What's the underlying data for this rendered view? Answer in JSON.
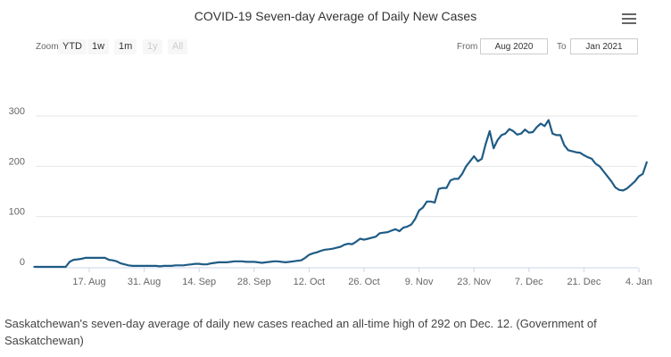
{
  "chart_data": {
    "type": "line",
    "title": "COVID-19 Seven-day Average of Daily New Cases",
    "xlabel": "",
    "ylabel": "",
    "ylim": [
      0,
      320
    ],
    "y_ticks": [
      0,
      100,
      200,
      300
    ],
    "x_ticks": [
      {
        "label": "17. Aug",
        "date": "2020-08-17"
      },
      {
        "label": "31. Aug",
        "date": "2020-08-31"
      },
      {
        "label": "14. Sep",
        "date": "2020-09-14"
      },
      {
        "label": "28. Sep",
        "date": "2020-09-28"
      },
      {
        "label": "12. Oct",
        "date": "2020-10-12"
      },
      {
        "label": "26. Oct",
        "date": "2020-10-26"
      },
      {
        "label": "9. Nov",
        "date": "2020-11-09"
      },
      {
        "label": "23. Nov",
        "date": "2020-11-23"
      },
      {
        "label": "7. Dec",
        "date": "2020-12-07"
      },
      {
        "label": "21. Dec",
        "date": "2020-12-21"
      },
      {
        "label": "4. Jan",
        "date": "2021-01-04"
      }
    ],
    "grid": true,
    "legend": "none",
    "series": [
      {
        "color": "#1f5c85",
        "points": [
          [
            "2020-08-03",
            0
          ],
          [
            "2020-08-04",
            0
          ],
          [
            "2020-08-05",
            0
          ],
          [
            "2020-08-06",
            0
          ],
          [
            "2020-08-07",
            0
          ],
          [
            "2020-08-08",
            0
          ],
          [
            "2020-08-09",
            0
          ],
          [
            "2020-08-10",
            0
          ],
          [
            "2020-08-11",
            0
          ],
          [
            "2020-08-12",
            10
          ],
          [
            "2020-08-13",
            14
          ],
          [
            "2020-08-14",
            15
          ],
          [
            "2020-08-15",
            16
          ],
          [
            "2020-08-16",
            18
          ],
          [
            "2020-08-17",
            18
          ],
          [
            "2020-08-18",
            18
          ],
          [
            "2020-08-19",
            18
          ],
          [
            "2020-08-20",
            18
          ],
          [
            "2020-08-21",
            18
          ],
          [
            "2020-08-22",
            14
          ],
          [
            "2020-08-23",
            13
          ],
          [
            "2020-08-24",
            11
          ],
          [
            "2020-08-25",
            7
          ],
          [
            "2020-08-26",
            5
          ],
          [
            "2020-08-27",
            3
          ],
          [
            "2020-08-28",
            2
          ],
          [
            "2020-08-29",
            2
          ],
          [
            "2020-08-30",
            2
          ],
          [
            "2020-08-31",
            2
          ],
          [
            "2020-09-01",
            2
          ],
          [
            "2020-09-02",
            2
          ],
          [
            "2020-09-03",
            2
          ],
          [
            "2020-09-04",
            1
          ],
          [
            "2020-09-05",
            2
          ],
          [
            "2020-09-06",
            2
          ],
          [
            "2020-09-07",
            2
          ],
          [
            "2020-09-08",
            3
          ],
          [
            "2020-09-09",
            3
          ],
          [
            "2020-09-10",
            3
          ],
          [
            "2020-09-11",
            4
          ],
          [
            "2020-09-12",
            5
          ],
          [
            "2020-09-13",
            6
          ],
          [
            "2020-09-14",
            6
          ],
          [
            "2020-09-15",
            5
          ],
          [
            "2020-09-16",
            5
          ],
          [
            "2020-09-17",
            7
          ],
          [
            "2020-09-18",
            8
          ],
          [
            "2020-09-19",
            9
          ],
          [
            "2020-09-20",
            9
          ],
          [
            "2020-09-21",
            9
          ],
          [
            "2020-09-22",
            10
          ],
          [
            "2020-09-23",
            11
          ],
          [
            "2020-09-24",
            11
          ],
          [
            "2020-09-25",
            11
          ],
          [
            "2020-09-26",
            10
          ],
          [
            "2020-09-27",
            10
          ],
          [
            "2020-09-28",
            10
          ],
          [
            "2020-09-29",
            9
          ],
          [
            "2020-09-30",
            8
          ],
          [
            "2020-10-01",
            9
          ],
          [
            "2020-10-02",
            10
          ],
          [
            "2020-10-03",
            11
          ],
          [
            "2020-10-04",
            11
          ],
          [
            "2020-10-05",
            10
          ],
          [
            "2020-10-06",
            9
          ],
          [
            "2020-10-07",
            10
          ],
          [
            "2020-10-08",
            11
          ],
          [
            "2020-10-09",
            12
          ],
          [
            "2020-10-10",
            13
          ],
          [
            "2020-10-11",
            18
          ],
          [
            "2020-10-12",
            24
          ],
          [
            "2020-10-13",
            27
          ],
          [
            "2020-10-14",
            29
          ],
          [
            "2020-10-15",
            32
          ],
          [
            "2020-10-16",
            34
          ],
          [
            "2020-10-17",
            35
          ],
          [
            "2020-10-18",
            36
          ],
          [
            "2020-10-19",
            38
          ],
          [
            "2020-10-20",
            40
          ],
          [
            "2020-10-21",
            44
          ],
          [
            "2020-10-22",
            46
          ],
          [
            "2020-10-23",
            45
          ],
          [
            "2020-10-24",
            50
          ],
          [
            "2020-10-25",
            56
          ],
          [
            "2020-10-26",
            54
          ],
          [
            "2020-10-27",
            56
          ],
          [
            "2020-10-28",
            58
          ],
          [
            "2020-10-29",
            60
          ],
          [
            "2020-10-30",
            67
          ],
          [
            "2020-10-31",
            68
          ],
          [
            "2020-11-01",
            69
          ],
          [
            "2020-11-02",
            72
          ],
          [
            "2020-11-03",
            75
          ],
          [
            "2020-11-04",
            71
          ],
          [
            "2020-11-05",
            78
          ],
          [
            "2020-11-06",
            80
          ],
          [
            "2020-11-07",
            84
          ],
          [
            "2020-11-08",
            95
          ],
          [
            "2020-11-09",
            112
          ],
          [
            "2020-11-10",
            118
          ],
          [
            "2020-11-11",
            130
          ],
          [
            "2020-11-12",
            130
          ],
          [
            "2020-11-13",
            128
          ],
          [
            "2020-11-14",
            155
          ],
          [
            "2020-11-15",
            157
          ],
          [
            "2020-11-16",
            157
          ],
          [
            "2020-11-17",
            172
          ],
          [
            "2020-11-18",
            175
          ],
          [
            "2020-11-19",
            175
          ],
          [
            "2020-11-20",
            185
          ],
          [
            "2020-11-21",
            200
          ],
          [
            "2020-11-22",
            210
          ],
          [
            "2020-11-23",
            220
          ],
          [
            "2020-11-24",
            210
          ],
          [
            "2020-11-25",
            215
          ],
          [
            "2020-11-26",
            245
          ],
          [
            "2020-11-27",
            270
          ],
          [
            "2020-11-28",
            236
          ],
          [
            "2020-11-29",
            252
          ],
          [
            "2020-11-30",
            262
          ],
          [
            "2020-12-01",
            265
          ],
          [
            "2020-12-02",
            274
          ],
          [
            "2020-12-03",
            270
          ],
          [
            "2020-12-04",
            263
          ],
          [
            "2020-12-05",
            265
          ],
          [
            "2020-12-06",
            273
          ],
          [
            "2020-12-07",
            267
          ],
          [
            "2020-12-08",
            268
          ],
          [
            "2020-12-09",
            278
          ],
          [
            "2020-12-10",
            285
          ],
          [
            "2020-12-11",
            280
          ],
          [
            "2020-12-12",
            292
          ],
          [
            "2020-12-13",
            265
          ],
          [
            "2020-12-14",
            262
          ],
          [
            "2020-12-15",
            262
          ],
          [
            "2020-12-16",
            242
          ],
          [
            "2020-12-17",
            232
          ],
          [
            "2020-12-18",
            230
          ],
          [
            "2020-12-19",
            228
          ],
          [
            "2020-12-20",
            227
          ],
          [
            "2020-12-21",
            222
          ],
          [
            "2020-12-22",
            218
          ],
          [
            "2020-12-23",
            215
          ],
          [
            "2020-12-24",
            205
          ],
          [
            "2020-12-25",
            200
          ],
          [
            "2020-12-26",
            190
          ],
          [
            "2020-12-27",
            180
          ],
          [
            "2020-12-28",
            170
          ],
          [
            "2020-12-29",
            158
          ],
          [
            "2020-12-30",
            153
          ],
          [
            "2020-12-31",
            152
          ],
          [
            "2021-01-01",
            156
          ],
          [
            "2021-01-02",
            163
          ],
          [
            "2021-01-03",
            170
          ],
          [
            "2021-01-04",
            180
          ],
          [
            "2021-01-05",
            185
          ],
          [
            "2021-01-06",
            208
          ]
        ]
      }
    ]
  },
  "zoom": {
    "label": "Zoom",
    "buttons": [
      {
        "label": "YTD",
        "enabled": true
      },
      {
        "label": "1w",
        "enabled": true
      },
      {
        "label": "1m",
        "enabled": true
      },
      {
        "label": "1y",
        "enabled": false
      },
      {
        "label": "All",
        "enabled": false
      }
    ]
  },
  "range": {
    "from_label": "From",
    "from_value": "Aug 2020",
    "to_label": "To",
    "to_value": "Jan 2021"
  },
  "caption": "Saskatchewan's seven-day average of daily new cases reached an all-time high of 292 on Dec. 12. (Government of Saskatchewan)"
}
